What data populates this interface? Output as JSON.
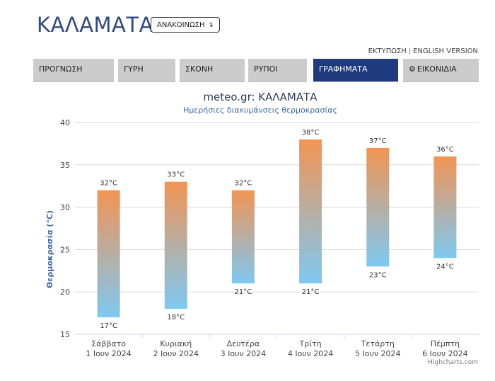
{
  "header": {
    "city": "ΚΑΛΑΜΑΤΑ",
    "announce_label": "ΑΝΑΚΟΙΝΩΣΗ",
    "announce_icon": "arrow-down-icon",
    "print_label": "ΕΚΤΥΠΩΣΗ",
    "separator": "|",
    "english_label": "ENGLISH VERSION"
  },
  "tabs": [
    {
      "label": "ΠΡΟΓΝΩΣΗ",
      "active": false
    },
    {
      "label": "ΓΥΡΗ",
      "active": false
    },
    {
      "label": "ΣΚΟΝΗ",
      "active": false
    },
    {
      "label": "ΡΥΠΟΙ",
      "active": false
    },
    {
      "label": "ΓΡΑΦΗΜΑΤΑ",
      "active": true
    },
    {
      "label": "ΕΙΚΟΝΙΔΙΑ",
      "active": false,
      "icon": "gear-icon"
    }
  ],
  "colors": {
    "bar_top": "#f29453",
    "bar_bottom": "#7ec8f2",
    "title": "#2d3b5c",
    "subtitle": "#3a6aa8",
    "active_tab": "#1f3a7d",
    "city": "#2f4a85"
  },
  "chart_data": {
    "type": "bar",
    "subtype": "columnrange",
    "title": "meteo.gr: ΚΑΛΑΜΑΤΑ",
    "subtitle": "Ημερήσιες διακυμάνσεις θερμοκρασίας",
    "ylabel": "Θερμοκρασία (°C)",
    "ylim": [
      15,
      40
    ],
    "yticks": [
      15,
      20,
      25,
      30,
      35,
      40
    ],
    "grid": true,
    "categories": [
      {
        "day": "Σάββατο",
        "date": "1 Ιουν 2024"
      },
      {
        "day": "Κυριακή",
        "date": "2 Ιουν 2024"
      },
      {
        "day": "Δευτέρα",
        "date": "3 Ιουν 2024"
      },
      {
        "day": "Τρίτη",
        "date": "4 Ιουν 2024"
      },
      {
        "day": "Τετάρτη",
        "date": "5 Ιουν 2024"
      },
      {
        "day": "Πέμπτη",
        "date": "6 Ιουν 2024"
      }
    ],
    "series": [
      {
        "low": 17,
        "high": 32
      },
      {
        "low": 18,
        "high": 33
      },
      {
        "low": 21,
        "high": 32
      },
      {
        "low": 21,
        "high": 38
      },
      {
        "low": 23,
        "high": 37
      },
      {
        "low": 24,
        "high": 36
      }
    ],
    "unit": "°C",
    "credits": "Highcharts.com"
  }
}
